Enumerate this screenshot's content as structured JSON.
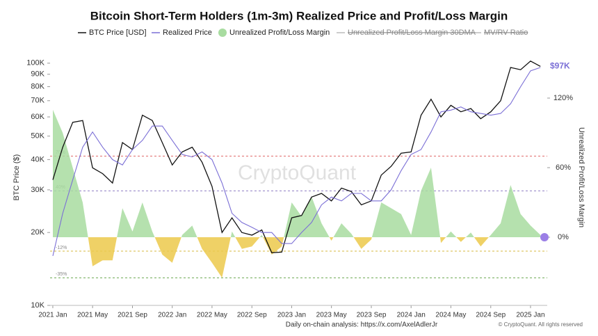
{
  "chart_data": {
    "type": "line",
    "title": "Bitcoin Short-Term Holders (1m-3m)  Realized Price and Profit/Loss Margin",
    "ylabel": "BTC Price ($)",
    "y2label": "Unrealized Profit/Loss Margin",
    "watermark": "CryptoQuant",
    "footer": {
      "source": "Daily on-chain analysis: https://x.com/AxelAdlerJr",
      "copyright": "© CryptoQuant. All rights reserved"
    },
    "legend_hidden": [
      "Unrealized Profit/Loss Margin 30DMA",
      "MV/RV Ratio"
    ],
    "log_y": true,
    "x": [
      2021,
      2021.083,
      2021.167,
      2021.25,
      2021.333,
      2021.417,
      2021.5,
      2021.583,
      2021.667,
      2021.75,
      2021.833,
      2021.917,
      2022,
      2022.083,
      2022.167,
      2022.25,
      2022.333,
      2022.417,
      2022.5,
      2022.583,
      2022.667,
      2022.75,
      2022.833,
      2022.917,
      2023,
      2023.083,
      2023.167,
      2023.25,
      2023.333,
      2023.417,
      2023.5,
      2023.583,
      2023.667,
      2023.75,
      2023.833,
      2023.917,
      2024,
      2024.083,
      2024.167,
      2024.25,
      2024.333,
      2024.417,
      2024.5,
      2024.583,
      2024.667,
      2024.75,
      2024.833,
      2024.917,
      2025,
      2025.083
    ],
    "xlim": [
      2020.977,
      2025.14
    ],
    "xticks": [
      {
        "value": 2021,
        "label": "2021 Jan"
      },
      {
        "value": 2021.333,
        "label": "2021 May"
      },
      {
        "value": 2021.667,
        "label": "2021 Sep"
      },
      {
        "value": 2022,
        "label": "2022 Jan"
      },
      {
        "value": 2022.333,
        "label": "2022 May"
      },
      {
        "value": 2022.667,
        "label": "2022 Sep"
      },
      {
        "value": 2023,
        "label": "2023 Jan"
      },
      {
        "value": 2023.333,
        "label": "2023 May"
      },
      {
        "value": 2023.667,
        "label": "2023 Sep"
      },
      {
        "value": 2024,
        "label": "2024 Jan"
      },
      {
        "value": 2024.333,
        "label": "2024 May"
      },
      {
        "value": 2024.667,
        "label": "2024 Sep"
      },
      {
        "value": 2025,
        "label": "2025 Jan"
      }
    ],
    "ylim": [
      10000,
      121000
    ],
    "yticks": [
      {
        "value": 10000,
        "label": "10K"
      },
      {
        "value": 20000,
        "label": "20K"
      },
      {
        "value": 30000,
        "label": "30K"
      },
      {
        "value": 40000,
        "label": "40K"
      },
      {
        "value": 50000,
        "label": "50K"
      },
      {
        "value": 60000,
        "label": "60K"
      },
      {
        "value": 70000,
        "label": "70K"
      },
      {
        "value": 80000,
        "label": "80K"
      },
      {
        "value": 90000,
        "label": "90K"
      },
      {
        "value": 100000,
        "label": "100K"
      }
    ],
    "y2lim": [
      -58.8,
      167.4
    ],
    "y2ticks": [
      {
        "value": 0,
        "label": "0%"
      },
      {
        "value": 60,
        "label": "60%"
      },
      {
        "value": 120,
        "label": "120%"
      }
    ],
    "thresholds": [
      {
        "value": 70,
        "label": "70%",
        "color": "#e06666"
      },
      {
        "value": 40,
        "label": "40%",
        "color": "#8e7cc3"
      },
      {
        "value": -12,
        "label": "-12%",
        "color": "#d4b93c"
      },
      {
        "value": -35,
        "label": "-35%",
        "color": "#6aa84f"
      }
    ],
    "annotation": {
      "text": "$97K",
      "value": 97000,
      "color": "#7b6fd6"
    },
    "series": [
      {
        "name": "BTC Price [USD]",
        "color": "#111111",
        "values": [
          33000,
          45000,
          57000,
          58000,
          37000,
          35000,
          32000,
          47000,
          44000,
          61000,
          58000,
          47000,
          38000,
          43000,
          45000,
          39000,
          31000,
          20000,
          23000,
          20000,
          19500,
          20500,
          16500,
          16600,
          23000,
          23500,
          28000,
          29000,
          27000,
          30500,
          29500,
          26000,
          27000,
          34500,
          37500,
          42500,
          43000,
          61000,
          71000,
          60000,
          67000,
          63000,
          65000,
          59000,
          63000,
          70000,
          96000,
          94000,
          102000,
          97000
        ]
      },
      {
        "name": "Realized Price",
        "color": "#7b6fd6",
        "values": [
          16000,
          24000,
          33000,
          45000,
          52000,
          45000,
          40000,
          38000,
          44000,
          48000,
          55000,
          55000,
          48000,
          42000,
          41000,
          43000,
          40000,
          32000,
          24000,
          22000,
          21000,
          20000,
          20000,
          18000,
          18000,
          20000,
          22000,
          26000,
          28000,
          27000,
          29000,
          29000,
          27000,
          27000,
          30000,
          36000,
          42000,
          44000,
          52000,
          63000,
          64000,
          66000,
          63000,
          62000,
          61000,
          62000,
          68000,
          80000,
          93000,
          96000
        ]
      },
      {
        "name": "Unrealized Profit/Loss Margin",
        "type": "area",
        "axis": "y2",
        "color": "#a8dca0",
        "negative_color": "#ecc94b",
        "values": [
          110,
          90,
          60,
          30,
          -25,
          -20,
          -20,
          25,
          5,
          30,
          5,
          -15,
          -22,
          2,
          10,
          -10,
          -22,
          -35,
          5,
          -10,
          -8,
          2,
          -15,
          -8,
          30,
          18,
          35,
          12,
          -3,
          12,
          3,
          -10,
          -2,
          30,
          25,
          20,
          2,
          40,
          60,
          -5,
          5,
          -4,
          4,
          -8,
          2,
          12,
          45,
          20,
          10,
          2
        ]
      }
    ]
  }
}
